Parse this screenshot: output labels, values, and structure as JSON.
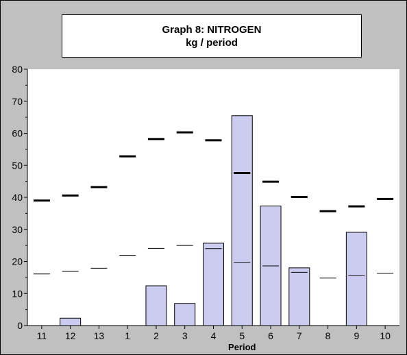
{
  "chart_data": {
    "type": "bar",
    "title": "Graph 8: NITROGEN",
    "subtitle": "kg / period",
    "xlabel": "Period",
    "ylabel": "",
    "ylim": [
      0,
      80
    ],
    "yticks": [
      0,
      10,
      20,
      30,
      40,
      50,
      60,
      70,
      80
    ],
    "grid": false,
    "categories": [
      "11",
      "12",
      "13",
      "1",
      "2",
      "3",
      "4",
      "5",
      "6",
      "7",
      "8",
      "9",
      "10"
    ],
    "series": [
      {
        "kind": "bar",
        "values": [
          0,
          2.3,
          0,
          0,
          12.4,
          6.9,
          25.7,
          65.5,
          37.3,
          18.0,
          0,
          29.1,
          0
        ]
      },
      {
        "kind": "marker-thick",
        "values": [
          39.0,
          40.6,
          43.2,
          52.8,
          58.2,
          60.3,
          57.8,
          47.6,
          44.9,
          40.1,
          35.7,
          37.2,
          39.5
        ]
      },
      {
        "kind": "marker-thin",
        "values": [
          16.1,
          16.9,
          17.9,
          21.9,
          24.1,
          25.0,
          24.0,
          19.7,
          18.6,
          16.6,
          14.8,
          15.5,
          16.3
        ]
      }
    ],
    "colors": {
      "bar_fill": "#ccccf0",
      "bar_stroke": "#000000",
      "plot_bg": "#ffffff",
      "frame_bg": "#c0c0c0"
    }
  }
}
